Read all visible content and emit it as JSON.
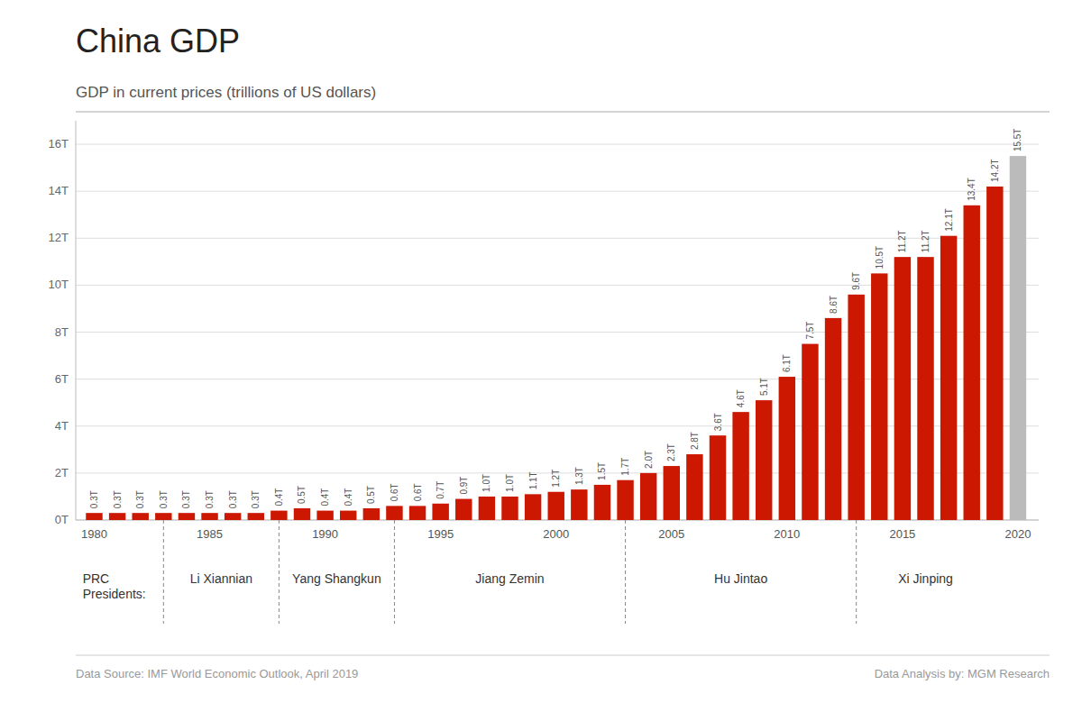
{
  "chart_data": {
    "type": "bar",
    "title": "China GDP",
    "subtitle": "GDP in current prices (trillions of US dollars)",
    "footer": [
      "Data Source: IMF World Economic Outlook, April 2019",
      "Data Analysis by: MGM Research"
    ],
    "x": [
      1980,
      1981,
      1982,
      1983,
      1984,
      1985,
      1986,
      1987,
      1988,
      1989,
      1990,
      1991,
      1992,
      1993,
      1994,
      1995,
      1996,
      1997,
      1998,
      1999,
      2000,
      2001,
      2002,
      2003,
      2004,
      2005,
      2006,
      2007,
      2008,
      2009,
      2010,
      2011,
      2012,
      2013,
      2014,
      2015,
      2016,
      2017,
      2018,
      2019,
      2020
    ],
    "values": [
      0.3,
      0.3,
      0.3,
      0.3,
      0.3,
      0.3,
      0.3,
      0.3,
      0.4,
      0.5,
      0.4,
      0.4,
      0.5,
      0.6,
      0.6,
      0.7,
      0.9,
      1.0,
      1.0,
      1.1,
      1.2,
      1.3,
      1.5,
      1.7,
      2.0,
      2.3,
      2.8,
      3.6,
      4.6,
      5.1,
      6.1,
      7.5,
      8.6,
      9.6,
      10.5,
      11.2,
      11.2,
      12.1,
      13.4,
      14.2,
      15.5
    ],
    "value_labels": [
      "0.3T",
      "0.3T",
      "0.3T",
      "0.3T",
      "0.3T",
      "0.3T",
      "0.3T",
      "0.3T",
      "0.4T",
      "0.5T",
      "0.4T",
      "0.4T",
      "0.5T",
      "0.6T",
      "0.6T",
      "0.7T",
      "0.9T",
      "1.0T",
      "1.0T",
      "1.1T",
      "1.2T",
      "1.3T",
      "1.5T",
      "1.7T",
      "2.0T",
      "2.3T",
      "2.8T",
      "3.6T",
      "4.6T",
      "5.1T",
      "6.1T",
      "7.5T",
      "8.6T",
      "9.6T",
      "10.5T",
      "11.2T",
      "11.2T",
      "12.1T",
      "13.4T",
      "14.2T",
      "15.5T"
    ],
    "colors": [
      "#CC1800",
      "#CC1800",
      "#CC1800",
      "#CC1800",
      "#CC1800",
      "#CC1800",
      "#CC1800",
      "#CC1800",
      "#CC1800",
      "#CC1800",
      "#CC1800",
      "#CC1800",
      "#CC1800",
      "#CC1800",
      "#CC1800",
      "#CC1800",
      "#CC1800",
      "#CC1800",
      "#CC1800",
      "#CC1800",
      "#CC1800",
      "#CC1800",
      "#CC1800",
      "#CC1800",
      "#CC1800",
      "#CC1800",
      "#CC1800",
      "#CC1800",
      "#CC1800",
      "#CC1800",
      "#CC1800",
      "#CC1800",
      "#CC1800",
      "#CC1800",
      "#CC1800",
      "#CC1800",
      "#CC1800",
      "#CC1800",
      "#CC1800",
      "#CC1800",
      "#BBBBBB"
    ],
    "data_labels": true,
    "grid": true,
    "xlim": [
      1979.2,
      2020.9
    ],
    "xticks": [
      1980,
      1985,
      1990,
      1995,
      2000,
      2005,
      2010,
      2015,
      2020
    ],
    "ylim": [
      0,
      17
    ],
    "yticks": [
      {
        "value": 0,
        "label": "0T"
      },
      {
        "value": 2,
        "label": "2T"
      },
      {
        "value": 4,
        "label": "4T"
      },
      {
        "value": 6,
        "label": "6T"
      },
      {
        "value": 8,
        "label": "8T"
      },
      {
        "value": 10,
        "label": "10T"
      },
      {
        "value": 12,
        "label": "12T"
      },
      {
        "value": 14,
        "label": "14T"
      },
      {
        "value": 16,
        "label": "16T"
      }
    ],
    "dividers": [
      1983,
      1988,
      1993,
      2003,
      2013
    ],
    "annotations": [
      {
        "text": "PRC\nPresidents:",
        "x": 1979.5
      },
      {
        "text": "Li Xiannian",
        "x": 1985.5
      },
      {
        "text": "Yang Shangkun",
        "x": 1990.5
      },
      {
        "text": "Jiang Zemin",
        "x": 1998.0
      },
      {
        "text": "Hu Jintao",
        "x": 2008.0
      },
      {
        "text": "Xi Jinping",
        "x": 2016.0
      }
    ]
  }
}
